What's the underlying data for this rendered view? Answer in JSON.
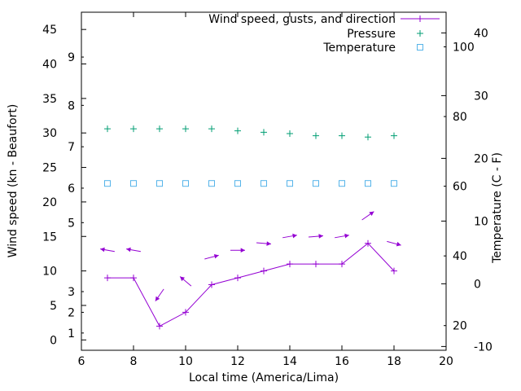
{
  "chart_data": {
    "type": "line",
    "title": "",
    "xlabel": "Local time (America/Lima)",
    "ylabel_left": "Wind speed (kn - Beaufort)",
    "ylabel_right": "Temperature (C - F)",
    "x_range": [
      6,
      20
    ],
    "x_ticks": [
      6,
      8,
      10,
      12,
      14,
      16,
      18,
      20
    ],
    "left_axis": {
      "range": [
        -1.5,
        47.5
      ],
      "kn_ticks": [
        0,
        5,
        10,
        15,
        20,
        25,
        30,
        35,
        40,
        45
      ],
      "beaufort_ticks": [
        {
          "label": "1",
          "kn": 1
        },
        {
          "label": "2",
          "kn": 4
        },
        {
          "label": "3",
          "kn": 7
        },
        {
          "label": "5",
          "kn": 17
        },
        {
          "label": "6",
          "kn": 22
        },
        {
          "label": "7",
          "kn": 28
        },
        {
          "label": "8",
          "kn": 34
        },
        {
          "label": "9",
          "kn": 41
        }
      ]
    },
    "right_axis": {
      "range_c": [
        -10.6,
        43.3
      ],
      "c_ticks": [
        -10,
        0,
        10,
        20,
        30,
        40
      ],
      "f_ticks": [
        20,
        40,
        60,
        80,
        100
      ]
    },
    "x": [
      7,
      8,
      9,
      10,
      11,
      12,
      13,
      14,
      15,
      16,
      17,
      18
    ],
    "series": [
      {
        "name": "Wind speed, gusts, and direction",
        "sample": "line-plus",
        "color": "#9400d3",
        "wind_speed_kn": [
          9,
          9,
          2,
          4,
          8,
          9,
          10,
          11,
          11,
          11,
          14,
          10
        ],
        "gust_kn": [
          13,
          13,
          6.5,
          8.5,
          12,
          13,
          14,
          15,
          15,
          15,
          18,
          14
        ],
        "gust_arrow_deg": [
          170,
          170,
          235,
          140,
          15,
          0,
          -5,
          10,
          5,
          10,
          35,
          -15
        ]
      },
      {
        "name": "Pressure",
        "sample": "plus",
        "color": "#009e73",
        "axis": "left",
        "values": [
          30.6,
          30.6,
          30.6,
          30.6,
          30.6,
          30.3,
          30.1,
          29.9,
          29.6,
          29.6,
          29.4,
          29.6
        ]
      },
      {
        "name": "Temperature",
        "sample": "square",
        "color": "#56b4e9",
        "axis": "right",
        "values_c": [
          16,
          16,
          16,
          16,
          16,
          16,
          16,
          16,
          16,
          16,
          16,
          16
        ]
      }
    ],
    "legend_position": "top-right",
    "grid": false
  }
}
